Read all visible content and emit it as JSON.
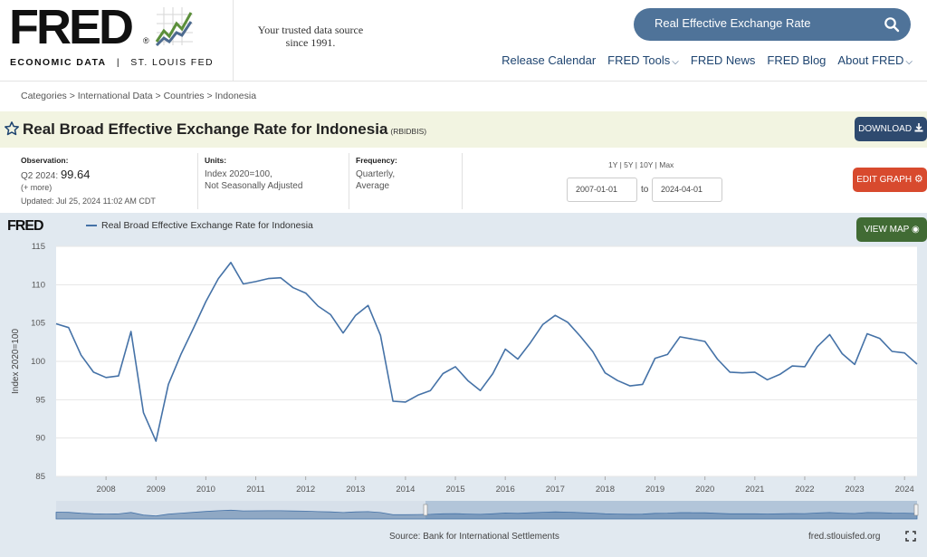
{
  "header": {
    "logo_text": "FRED",
    "logo_reg": "®",
    "logo_sub_1": "ECONOMIC DATA",
    "logo_sub_sep": "|",
    "logo_sub_2": "ST. LOUIS FED",
    "tagline_1": "Your trusted data source",
    "tagline_2": "since 1991.",
    "search_text": "Real Effective Exchange Rate",
    "nav": [
      "Release Calendar",
      "FRED Tools",
      "FRED News",
      "FRED Blog",
      "About FRED"
    ]
  },
  "breadcrumb": "Categories > International Data > Countries > Indonesia",
  "series": {
    "title": "Real Broad Effective Exchange Rate for Indonesia",
    "id": "(RBIDBIS)"
  },
  "buttons": {
    "download": "DOWNLOAD",
    "edit_graph": "EDIT GRAPH",
    "view_map": "VIEW MAP"
  },
  "info": {
    "observation_label": "Observation:",
    "observation_period": "Q2 2024:",
    "observation_value": "99.64",
    "more": "(+ more)",
    "updated": "Updated: Jul 25, 2024 11:02 AM CDT",
    "units_label": "Units:",
    "units_1": "Index 2020=100,",
    "units_2": "Not Seasonally Adjusted",
    "frequency_label": "Frequency:",
    "frequency_1": "Quarterly,",
    "frequency_2": "Average",
    "range_links": "1Y | 5Y | 10Y | Max",
    "date_from": "2007-01-01",
    "date_to_label": "to",
    "date_to": "2024-04-01"
  },
  "chart_mini_logo": "FRED",
  "footer": {
    "source": "Source: Bank for International Settlements",
    "url": "fred.stlouisfed.org"
  },
  "colors": {
    "series_line": "#4572a7",
    "panel_bg": "#e1e9f0",
    "download_btn": "#2e4a6f",
    "edit_btn": "#d84a2e",
    "map_btn": "#416b34",
    "search_bg": "#4f7399"
  },
  "chart_data": {
    "type": "line",
    "title": "",
    "legend": [
      "Real Broad Effective Exchange Rate for Indonesia"
    ],
    "xlabel": "",
    "ylabel": "Index 2020=100",
    "ylim": [
      85,
      115
    ],
    "y_ticks": [
      85,
      90,
      95,
      100,
      105,
      110,
      115
    ],
    "x_ticks": [
      "2008",
      "2009",
      "2010",
      "2011",
      "2012",
      "2013",
      "2014",
      "2015",
      "2016",
      "2017",
      "2018",
      "2019",
      "2020",
      "2021",
      "2022",
      "2023",
      "2024"
    ],
    "grid": true,
    "series": [
      {
        "name": "Real Broad Effective Exchange Rate for Indonesia",
        "x": [
          "2007-01-01",
          "2007-04-01",
          "2007-07-01",
          "2007-10-01",
          "2008-01-01",
          "2008-04-01",
          "2008-07-01",
          "2008-10-01",
          "2009-01-01",
          "2009-04-01",
          "2009-07-01",
          "2009-10-01",
          "2010-01-01",
          "2010-04-01",
          "2010-07-01",
          "2010-10-01",
          "2011-01-01",
          "2011-04-01",
          "2011-07-01",
          "2011-10-01",
          "2012-01-01",
          "2012-04-01",
          "2012-07-01",
          "2012-10-01",
          "2013-01-01",
          "2013-04-01",
          "2013-07-01",
          "2013-10-01",
          "2014-01-01",
          "2014-04-01",
          "2014-07-01",
          "2014-10-01",
          "2015-01-01",
          "2015-04-01",
          "2015-07-01",
          "2015-10-01",
          "2016-01-01",
          "2016-04-01",
          "2016-07-01",
          "2016-10-01",
          "2017-01-01",
          "2017-04-01",
          "2017-07-01",
          "2017-10-01",
          "2018-01-01",
          "2018-04-01",
          "2018-07-01",
          "2018-10-01",
          "2019-01-01",
          "2019-04-01",
          "2019-07-01",
          "2019-10-01",
          "2020-01-01",
          "2020-04-01",
          "2020-07-01",
          "2020-10-01",
          "2021-01-01",
          "2021-04-01",
          "2021-07-01",
          "2021-10-01",
          "2022-01-01",
          "2022-04-01",
          "2022-07-01",
          "2022-10-01",
          "2023-01-01",
          "2023-04-01",
          "2023-07-01",
          "2023-10-01",
          "2024-01-01",
          "2024-04-01"
        ],
        "values": [
          104.9,
          104.4,
          100.8,
          98.6,
          97.9,
          98.1,
          103.9,
          93.3,
          89.6,
          97.0,
          100.9,
          104.3,
          107.8,
          110.8,
          112.9,
          110.1,
          110.4,
          110.8,
          110.9,
          109.6,
          108.9,
          107.2,
          106.1,
          103.7,
          106.0,
          107.3,
          103.4,
          94.8,
          94.7,
          95.6,
          96.2,
          98.4,
          99.3,
          97.5,
          96.2,
          98.4,
          101.6,
          100.3,
          102.4,
          104.8,
          106.0,
          105.1,
          103.3,
          101.3,
          98.5,
          97.5,
          96.8,
          97.0,
          100.4,
          100.9,
          103.2,
          102.9,
          102.6,
          100.3,
          98.6,
          98.5,
          98.6,
          97.6,
          98.3,
          99.4,
          99.3,
          101.9,
          103.5,
          101.0,
          99.6,
          103.6,
          103.0,
          101.3,
          101.1,
          99.64
        ]
      }
    ]
  }
}
